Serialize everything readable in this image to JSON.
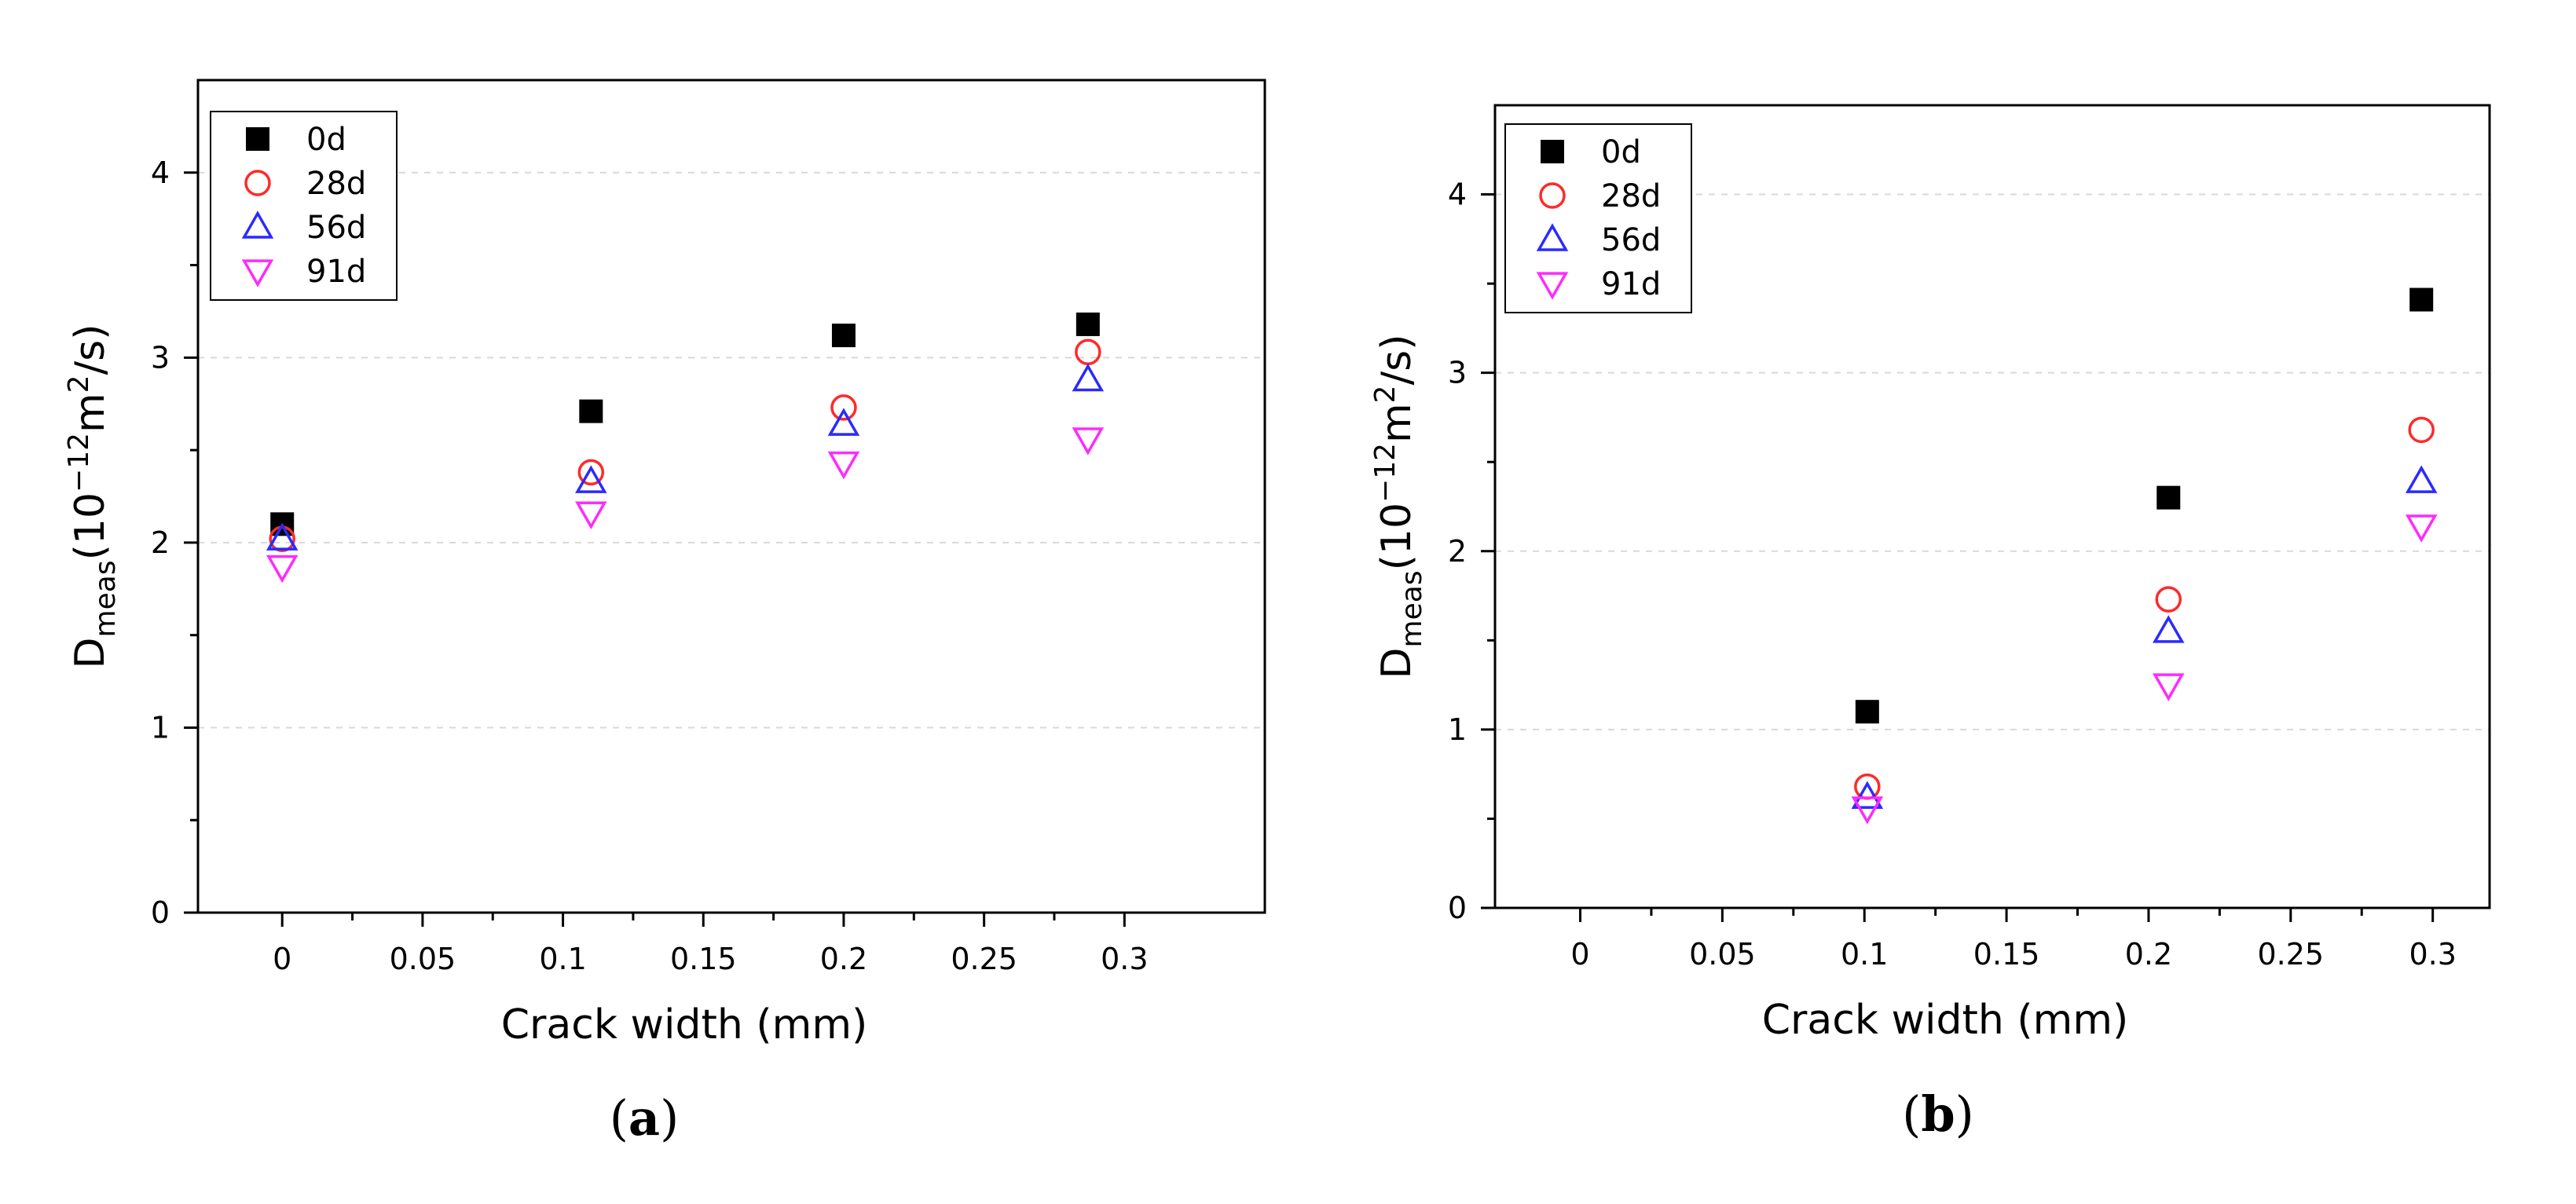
{
  "chart_data": [
    {
      "type": "scatter",
      "caption_open": "(",
      "caption_letter": "a",
      "caption_close": ")",
      "xlabel": "Crack width (mm)",
      "ylabel_main": "D",
      "ylabel_sub": "meas",
      "ylabel_rest1": "(10",
      "ylabel_sup1": "−12",
      "ylabel_rest2": "m",
      "ylabel_sup2": "2",
      "ylabel_rest3": "/s)",
      "xlim": [
        -0.03,
        0.35
      ],
      "ylim": [
        0,
        4.5
      ],
      "xticks": [
        0,
        0.05,
        0.1,
        0.15,
        0.2,
        0.25,
        0.3
      ],
      "xtick_labels": [
        "0",
        "0.05",
        "0.1",
        "0.15",
        "0.2",
        "0.25",
        "0.3"
      ],
      "yticks": [
        0,
        1,
        2,
        3,
        4
      ],
      "ytick_labels": [
        "0",
        "1",
        "2",
        "3",
        "4"
      ],
      "grid": "horizontal-dashed",
      "legend_position": "top-left",
      "series": [
        {
          "name": "0d",
          "marker": "square",
          "x": [
            0,
            0.11,
            0.2,
            0.287
          ],
          "y": [
            2.1,
            2.71,
            3.12,
            3.18
          ]
        },
        {
          "name": "28d",
          "marker": "circle",
          "x": [
            0,
            0.11,
            0.2,
            0.287
          ],
          "y": [
            2.02,
            2.38,
            2.73,
            3.03
          ]
        },
        {
          "name": "56d",
          "marker": "triangle-up",
          "x": [
            0,
            0.11,
            0.2,
            0.287
          ],
          "y": [
            2.02,
            2.33,
            2.64,
            2.88
          ]
        },
        {
          "name": "91d",
          "marker": "triangle-down",
          "x": [
            0,
            0.11,
            0.2,
            0.287
          ],
          "y": [
            1.87,
            2.16,
            2.43,
            2.56
          ]
        }
      ]
    },
    {
      "type": "scatter",
      "caption_open": "(",
      "caption_letter": "b",
      "caption_close": ")",
      "xlabel": "Crack width (mm)",
      "ylabel_main": "D",
      "ylabel_sub": "meas",
      "ylabel_rest1": "(10",
      "ylabel_sup1": "−12",
      "ylabel_rest2": "m",
      "ylabel_sup2": "2",
      "ylabel_rest3": "/s)",
      "xlim": [
        -0.03,
        0.32
      ],
      "ylim": [
        0,
        4.5
      ],
      "xticks": [
        0,
        0.05,
        0.1,
        0.15,
        0.2,
        0.25,
        0.3
      ],
      "xtick_labels": [
        "0",
        "0.05",
        "0.1",
        "0.15",
        "0.2",
        "0.25",
        "0.3"
      ],
      "yticks": [
        0,
        1,
        2,
        3,
        4
      ],
      "ytick_labels": [
        "0",
        "1",
        "2",
        "3",
        "4"
      ],
      "grid": "horizontal-dashed",
      "legend_position": "top-left",
      "series": [
        {
          "name": "0d",
          "marker": "square",
          "x": [
            0.101,
            0.207,
            0.296
          ],
          "y": [
            1.1,
            2.3,
            3.41
          ]
        },
        {
          "name": "28d",
          "marker": "circle",
          "x": [
            0.101,
            0.207,
            0.296
          ],
          "y": [
            0.68,
            1.73,
            2.68
          ]
        },
        {
          "name": "56d",
          "marker": "triangle-up",
          "x": [
            0.101,
            0.207,
            0.296
          ],
          "y": [
            0.62,
            1.55,
            2.39
          ]
        },
        {
          "name": "91d",
          "marker": "triangle-down",
          "x": [
            0.101,
            0.207,
            0.296
          ],
          "y": [
            0.56,
            1.25,
            2.14
          ]
        }
      ]
    }
  ],
  "colors": {
    "square": "#000000",
    "circle": "#ff2a2a",
    "triangle_up": "#2a2aff",
    "triangle_down": "#ff2aff",
    "grid": "#d9d9d9",
    "axis": "#000000"
  }
}
